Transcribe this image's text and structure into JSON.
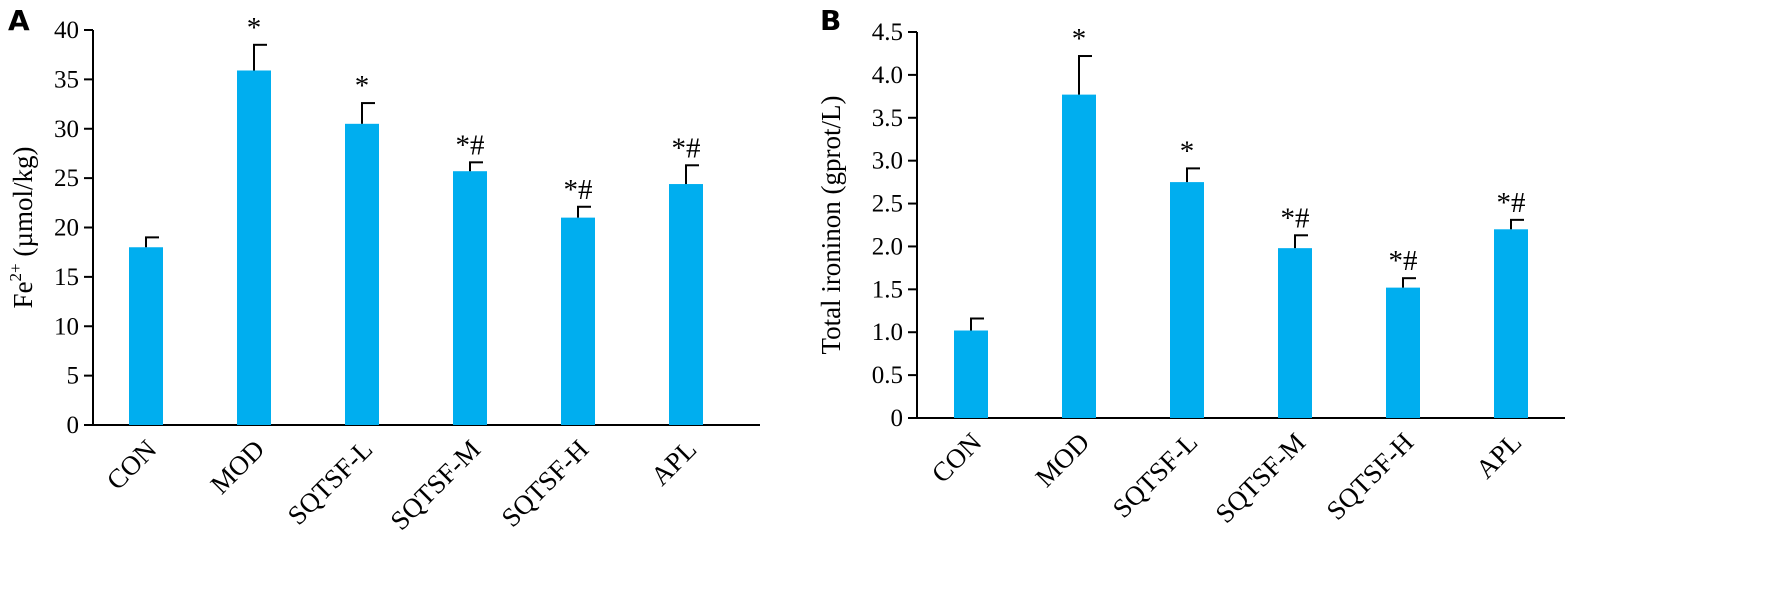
{
  "colors": {
    "bar": "#00AEEF",
    "axis": "#000000"
  },
  "chart_data": [
    {
      "type": "bar",
      "panel": "A",
      "categories": [
        "CON",
        "MOD",
        "SQTSF-L",
        "SQTSF-M",
        "SQTSF-H",
        "APL"
      ],
      "values": [
        18.0,
        35.9,
        30.5,
        25.7,
        21.0,
        24.4
      ],
      "errors": [
        1.0,
        2.6,
        2.1,
        0.9,
        1.1,
        1.9
      ],
      "annotations": [
        "",
        "*",
        "*",
        "*#",
        "*#",
        "*#"
      ],
      "ylabel_main": "Fe",
      "ylabel_sup": "2+",
      "ylabel_rest": " (µmol/kg)",
      "ylim": [
        0,
        40
      ],
      "yticks": [
        0,
        5,
        10,
        15,
        20,
        25,
        30,
        35,
        40
      ],
      "ytick_labels": [
        "0",
        "5",
        "10",
        "15",
        "20",
        "25",
        "30",
        "35",
        "40"
      ],
      "grid": false
    },
    {
      "type": "bar",
      "panel": "B",
      "categories": [
        "CON",
        "MOD",
        "SQTSF-L",
        "SQTSF-M",
        "SQTSF-H",
        "APL"
      ],
      "values": [
        1.02,
        3.77,
        2.75,
        1.98,
        1.52,
        2.2
      ],
      "errors": [
        0.14,
        0.45,
        0.16,
        0.15,
        0.11,
        0.11
      ],
      "annotations": [
        "",
        "*",
        "*",
        "*#",
        "*#",
        "*#"
      ],
      "ylabel": "Total ironinon (gprot/L)",
      "ylim": [
        0,
        4.5
      ],
      "yticks": [
        0,
        0.5,
        1.0,
        1.5,
        2.0,
        2.5,
        3.0,
        3.5,
        4.0,
        4.5
      ],
      "ytick_labels": [
        "0",
        "0.5",
        "1.0",
        "1.5",
        "2.0",
        "2.5",
        "3.0",
        "3.5",
        "4.0",
        "4.5"
      ],
      "grid": false
    }
  ]
}
